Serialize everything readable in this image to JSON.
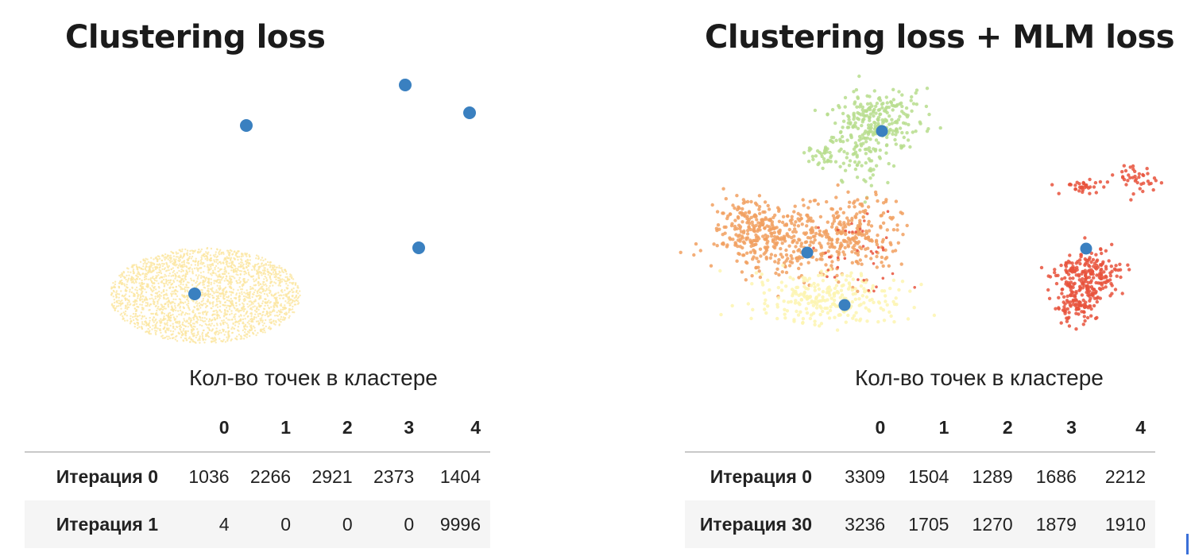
{
  "chart_data": [
    {
      "type": "scatter",
      "title": "Clustering loss",
      "legend": "none",
      "grid": false,
      "point_colors": {
        "cluster": "#fbe6a0",
        "center": "#3a80c0"
      },
      "series": [
        {
          "name": "",
          "x": [
            244
          ],
          "y": [
            370
          ]
        },
        {
          "name": "",
          "x": [
            310,
            510,
            591,
            527,
            245
          ],
          "y": [
            158,
            107,
            142,
            312,
            370
          ]
        }
      ],
      "table": {
        "caption": "Кол-во точек в кластере",
        "columns": [
          "0",
          "1",
          "2",
          "3",
          "4"
        ],
        "rows": [
          {
            "label": "Итерация 0",
            "values": [
              "1036",
              "2266",
              "2921",
              "2373",
              "1404"
            ]
          },
          {
            "label": "Итерация 1",
            "values": [
              "4",
              "0",
              "0",
              "0",
              "9996"
            ]
          }
        ]
      }
    },
    {
      "type": "scatter",
      "title": "Clustering loss + MLM loss",
      "legend": "none",
      "grid": false,
      "point_colors": {
        "c0": "#b7dd8d",
        "c1": "#f1a060",
        "c2": "#fdf5b0",
        "c3": "#e8523c",
        "center": "#3a80c0"
      },
      "series": [
        {
          "name": "",
          "x": [
            1110,
            1016,
            1063,
            1367
          ],
          "y": [
            165,
            318,
            384,
            313
          ]
        }
      ],
      "table": {
        "caption": "Кол-во точек в кластере",
        "columns": [
          "0",
          "1",
          "2",
          "3",
          "4"
        ],
        "rows": [
          {
            "label": "Итерация 0",
            "values": [
              "3309",
              "1504",
              "1289",
              "1686",
              "2212"
            ]
          },
          {
            "label": "Итерация 30",
            "values": [
              "3236",
              "1705",
              "1270",
              "1879",
              "1910"
            ]
          }
        ]
      }
    }
  ]
}
